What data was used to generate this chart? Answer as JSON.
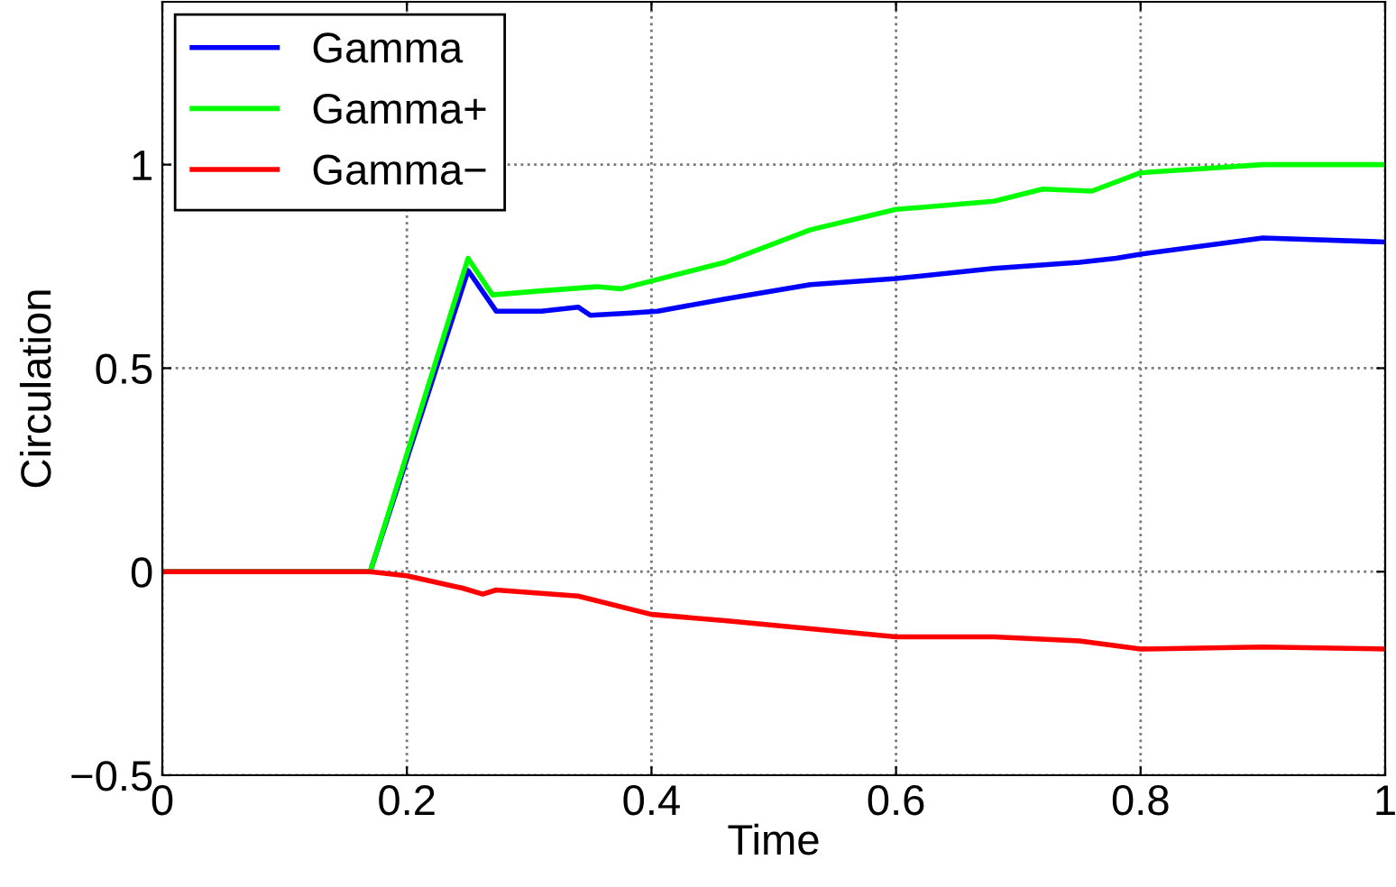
{
  "chart_data": {
    "type": "line",
    "xlabel": "Time",
    "ylabel": "Circulation",
    "xlim": [
      0,
      1
    ],
    "ylim": [
      -0.5,
      1.4
    ],
    "xticks": [
      0,
      0.2,
      0.4,
      0.6,
      0.8,
      1
    ],
    "yticks": [
      -0.5,
      0,
      0.5,
      1
    ],
    "grid": true,
    "legend": "top left",
    "line_style": "solid",
    "series": [
      {
        "name": "Gamma",
        "color": "#0000ff",
        "x": [
          0,
          0.17,
          0.25,
          0.273,
          0.31,
          0.34,
          0.35,
          0.38,
          0.405,
          0.46,
          0.53,
          0.6,
          0.68,
          0.75,
          0.78,
          0.8,
          0.9,
          1
        ],
        "values": [
          0,
          0,
          0.74,
          0.64,
          0.64,
          0.65,
          0.63,
          0.635,
          0.64,
          0.67,
          0.705,
          0.72,
          0.745,
          0.76,
          0.77,
          0.78,
          0.82,
          0.81
        ]
      },
      {
        "name": "Gamma+",
        "color": "#00ff00",
        "x": [
          0,
          0.17,
          0.25,
          0.27,
          0.31,
          0.355,
          0.375,
          0.46,
          0.53,
          0.6,
          0.68,
          0.72,
          0.76,
          0.8,
          0.9,
          1
        ],
        "values": [
          0,
          0,
          0.77,
          0.68,
          0.69,
          0.7,
          0.695,
          0.76,
          0.84,
          0.89,
          0.91,
          0.94,
          0.935,
          0.98,
          1.0,
          1.0
        ]
      },
      {
        "name": "Gamma−",
        "color": "#ff0000",
        "x": [
          0,
          0.17,
          0.2,
          0.245,
          0.262,
          0.273,
          0.34,
          0.4,
          0.46,
          0.53,
          0.6,
          0.68,
          0.75,
          0.8,
          0.9,
          1
        ],
        "values": [
          0,
          0,
          -0.01,
          -0.04,
          -0.055,
          -0.045,
          -0.06,
          -0.105,
          -0.12,
          -0.14,
          -0.16,
          -0.16,
          -0.17,
          -0.19,
          -0.185,
          -0.19
        ]
      }
    ]
  }
}
